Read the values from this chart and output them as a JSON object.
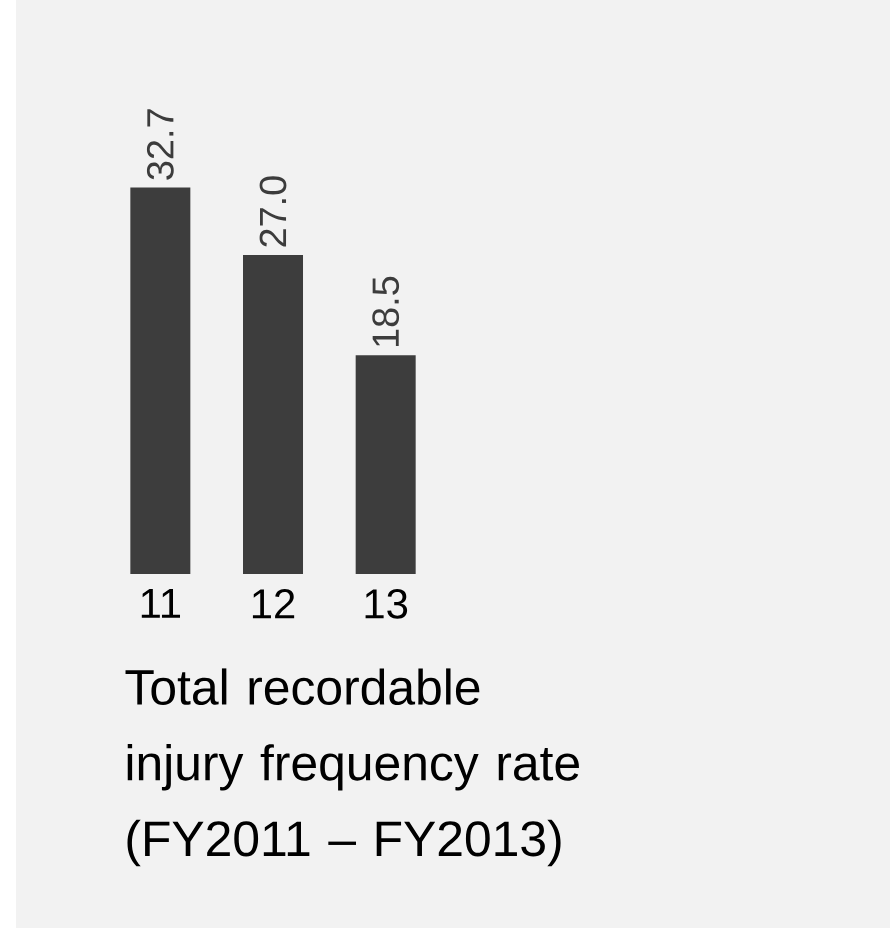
{
  "chart_data": {
    "type": "bar",
    "title": "Total recordable injury frequency rate (FY2011 – FY2013)",
    "categories": [
      "11",
      "12",
      "13"
    ],
    "values": [
      32.7,
      27.0,
      18.5
    ],
    "value_labels": [
      "32.7",
      "27.0",
      "18.5"
    ],
    "color": "#3d3d3d"
  }
}
